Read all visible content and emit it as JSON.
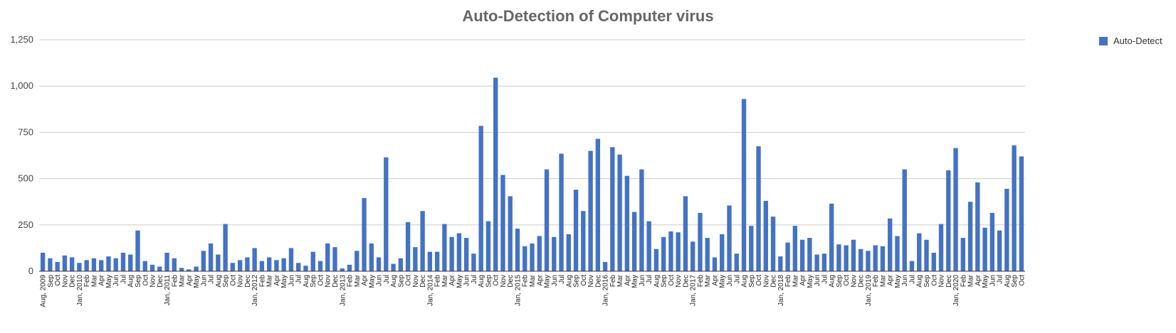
{
  "chart_data": {
    "type": "bar",
    "title": "Auto-Detection of Computer virus",
    "xlabel": "",
    "ylabel": "",
    "ylim": [
      0,
      1250
    ],
    "yticks": [
      0,
      250,
      500,
      750,
      1000,
      1250
    ],
    "ytick_labels": [
      "0",
      "250",
      "500",
      "750",
      "1,000",
      "1,250"
    ],
    "grid": true,
    "legend_position": "top-right",
    "categories": [
      "Aug, 2009",
      "Sep",
      "Oct",
      "Nov",
      "Dec",
      "Jan, 2010",
      "Feb",
      "Mar",
      "Apr",
      "May",
      "Jun",
      "Jul",
      "Aug",
      "Sep",
      "Oct",
      "Nov",
      "Dec",
      "Jan, 2011",
      "Feb",
      "Mar",
      "Apr",
      "May",
      "Jun",
      "Jul",
      "Aug",
      "Sep",
      "Oct",
      "Nov",
      "Dec",
      "Jan, 2012",
      "Feb",
      "Mar",
      "Apr",
      "May",
      "Jun",
      "Jul",
      "Aug",
      "Sep",
      "Oct",
      "Nov",
      "Dec",
      "Jan, 2013",
      "Feb",
      "Mar",
      "Apr",
      "May",
      "Jun",
      "Jul",
      "Aug",
      "Sep",
      "Oct",
      "Nov",
      "Dec",
      "Jan, 2014",
      "Feb",
      "Mar",
      "Apr",
      "May",
      "Jun",
      "Jul",
      "Aug",
      "Sep",
      "Oct",
      "Nov",
      "Dec",
      "Jan, 2015",
      "Feb",
      "Mar",
      "Apr",
      "May",
      "Jun",
      "Jul",
      "Aug",
      "Sep",
      "Oct",
      "Nov",
      "Dec",
      "Jan, 2016",
      "Feb",
      "Mar",
      "Apr",
      "May",
      "Jun",
      "Jul",
      "Aug",
      "Sep",
      "Oct",
      "Nov",
      "Dec",
      "Jan, 2017",
      "Feb",
      "Mar",
      "Apr",
      "May",
      "Jun",
      "Jul",
      "Aug",
      "Sep",
      "Oct",
      "Nov",
      "Dec",
      "Jan, 2018",
      "Feb",
      "Mar",
      "Apr",
      "May",
      "Jun",
      "Jul",
      "Aug",
      "Sep",
      "Oct",
      "Nov",
      "Dec",
      "Jan, 2019",
      "Feb",
      "Mar",
      "Apr",
      "May",
      "Jun",
      "Jul",
      "Aug",
      "Sep",
      "Oct",
      "Nov",
      "Dec",
      "Jan, 2020",
      "Feb",
      "Mar",
      "Apr",
      "May",
      "Jun",
      "Jul",
      "Aug",
      "Sep",
      "Oct"
    ],
    "series": [
      {
        "name": "Auto-Detect",
        "color": "#4472c4",
        "values": [
          100,
          70,
          50,
          85,
          75,
          45,
          60,
          70,
          60,
          80,
          70,
          100,
          90,
          220,
          55,
          35,
          25,
          100,
          70,
          18,
          10,
          25,
          110,
          150,
          90,
          255,
          45,
          60,
          75,
          125,
          55,
          75,
          60,
          70,
          125,
          45,
          30,
          105,
          55,
          150,
          130,
          15,
          35,
          110,
          395,
          150,
          75,
          615,
          40,
          70,
          265,
          130,
          325,
          105,
          105,
          255,
          185,
          205,
          180,
          95,
          785,
          270,
          1045,
          520,
          405,
          230,
          135,
          150,
          190,
          550,
          185,
          635,
          200,
          440,
          325,
          650,
          715,
          50,
          670,
          630,
          515,
          320,
          550,
          270,
          120,
          185,
          215,
          210,
          405,
          160,
          315,
          180,
          75,
          200,
          355,
          95,
          930,
          245,
          675,
          380,
          295,
          80,
          155,
          245,
          170,
          180,
          90,
          95,
          365,
          145,
          140,
          170,
          120,
          110,
          140,
          135,
          285,
          190,
          550,
          55,
          205,
          170,
          100,
          255,
          545,
          665,
          180,
          375,
          480,
          235,
          315,
          220,
          445,
          680,
          620
        ]
      }
    ]
  }
}
